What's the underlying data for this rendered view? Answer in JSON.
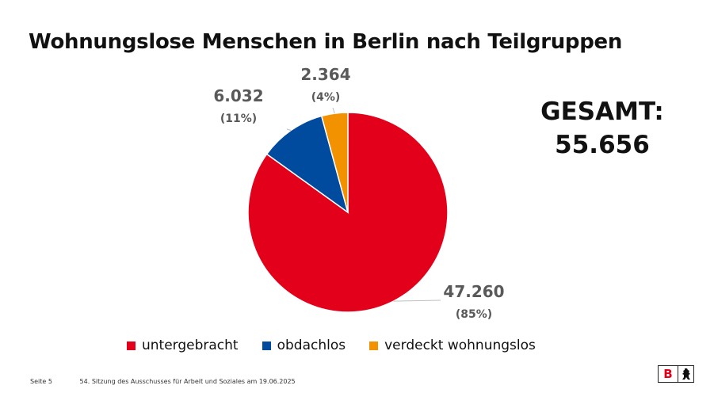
{
  "title": "Wohnungslose Menschen in Berlin nach Teilgruppen",
  "total": {
    "label": "GESAMT:",
    "value": "55.656"
  },
  "chart_data": {
    "type": "pie",
    "title": "Wohnungslose Menschen in Berlin nach Teilgruppen",
    "categories": [
      "untergebracht",
      "obdachlos",
      "verdeckt wohnungslos"
    ],
    "values": [
      47260,
      6032,
      2364
    ],
    "value_labels": [
      "47.260",
      "6.032",
      "2.364"
    ],
    "percent_labels": [
      "(85%)",
      "(11%)",
      "(4%)"
    ],
    "colors": [
      "#e2001a",
      "#004b9e",
      "#f39200"
    ],
    "legend_position": "bottom"
  },
  "legend": [
    {
      "label": "untergebracht",
      "color": "#e2001a"
    },
    {
      "label": "obdachlos",
      "color": "#004b9e"
    },
    {
      "label": "verdeckt wohnungslos",
      "color": "#f39200"
    }
  ],
  "footer": {
    "page": "Seite 5",
    "text": "54. Sitzung des Ausschusses für Arbeit und Soziales am 19.06.2025"
  },
  "logo": {
    "letter": "B"
  }
}
